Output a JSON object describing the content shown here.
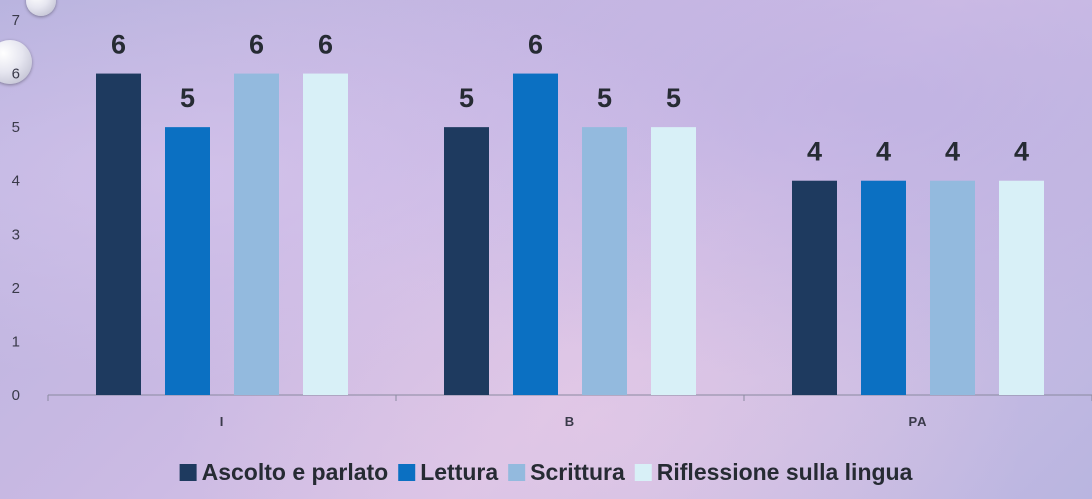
{
  "chart_data": {
    "type": "bar",
    "title": "",
    "xlabel": "",
    "ylabel": "",
    "categories": [
      "I",
      "B",
      "PA"
    ],
    "series": [
      {
        "name": "Ascolto e parlato",
        "values": [
          6,
          5,
          4
        ],
        "color": "#1e3a5f"
      },
      {
        "name": "Lettura",
        "values": [
          5,
          6,
          4
        ],
        "color": "#0b70c2"
      },
      {
        "name": "Scrittura",
        "values": [
          6,
          5,
          4
        ],
        "color": "#93bade"
      },
      {
        "name": "Riflessione sulla lingua",
        "values": [
          6,
          5,
          4
        ],
        "color": "#d8f0f7"
      }
    ],
    "ylim": [
      0,
      7
    ],
    "yticks": [
      0,
      1,
      2,
      3,
      4,
      5,
      6,
      7
    ],
    "grid": false,
    "data_labels": true,
    "legend_position": "bottom"
  }
}
